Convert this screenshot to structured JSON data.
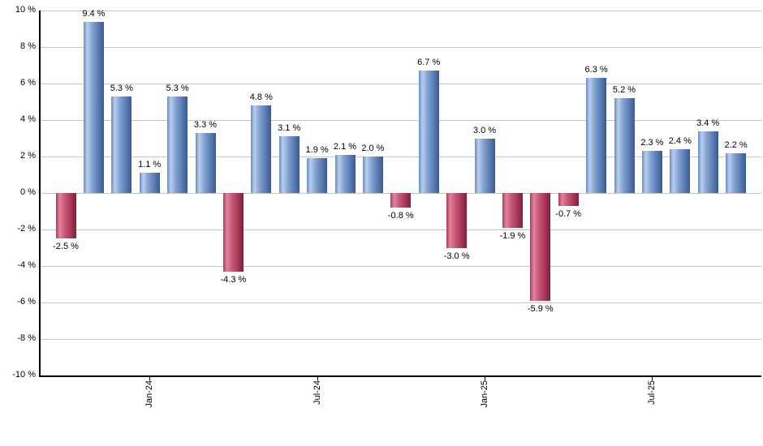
{
  "chart_data": {
    "type": "bar",
    "title": "",
    "xlabel": "",
    "ylabel": "",
    "ylim": [
      -10,
      10
    ],
    "ytick_step": 2,
    "grid": true,
    "legend": false,
    "values": [
      -2.5,
      9.4,
      5.3,
      1.1,
      5.3,
      3.3,
      -4.3,
      4.8,
      3.1,
      1.9,
      2.1,
      2.0,
      -0.8,
      6.7,
      -3.0,
      3.0,
      -1.9,
      -5.9,
      -0.7,
      6.3,
      5.2,
      2.3,
      2.4,
      3.4,
      2.2
    ],
    "value_labels": [
      "-2.5 %",
      "9.4 %",
      "5.3 %",
      "1.1 %",
      "5.3 %",
      "3.3 %",
      "-4.3 %",
      "4.8 %",
      "3.1 %",
      "1.9 %",
      "2.1 %",
      "2.0 %",
      "-0.8 %",
      "6.7 %",
      "-3.0 %",
      "3.0 %",
      "-1.9 %",
      "-5.9 %",
      "-0.7 %",
      "6.3 %",
      "5.2 %",
      "2.3 %",
      "2.4 %",
      "3.4 %",
      "2.2 %"
    ],
    "y_tick_labels": [
      "10 %",
      "8 %",
      "6 %",
      "4 %",
      "2 %",
      "0 %",
      "-2 %",
      "-4 %",
      "-6 %",
      "-8 %",
      "-10 %"
    ],
    "y_tick_values": [
      10,
      8,
      6,
      4,
      2,
      0,
      -2,
      -4,
      -6,
      -8,
      -10
    ],
    "x_tick_labels": [
      "Jan-24",
      "Jul-24",
      "Jan-25",
      "Jul-25"
    ],
    "x_tick_bar_indices": [
      3,
      9,
      15,
      21
    ],
    "colors": {
      "positive_edge": "#6b8cc0",
      "positive_light": "#b9ceee",
      "positive_mid": "#7e9fd0",
      "positive_dark": "#3a5a94",
      "negative_edge": "#aa3a59",
      "negative_light": "#e2849b",
      "negative_mid": "#c55677",
      "negative_dark": "#871b3b",
      "gridline": "#c6c6c6",
      "axis": "#000000",
      "label_text": "#000000"
    }
  }
}
